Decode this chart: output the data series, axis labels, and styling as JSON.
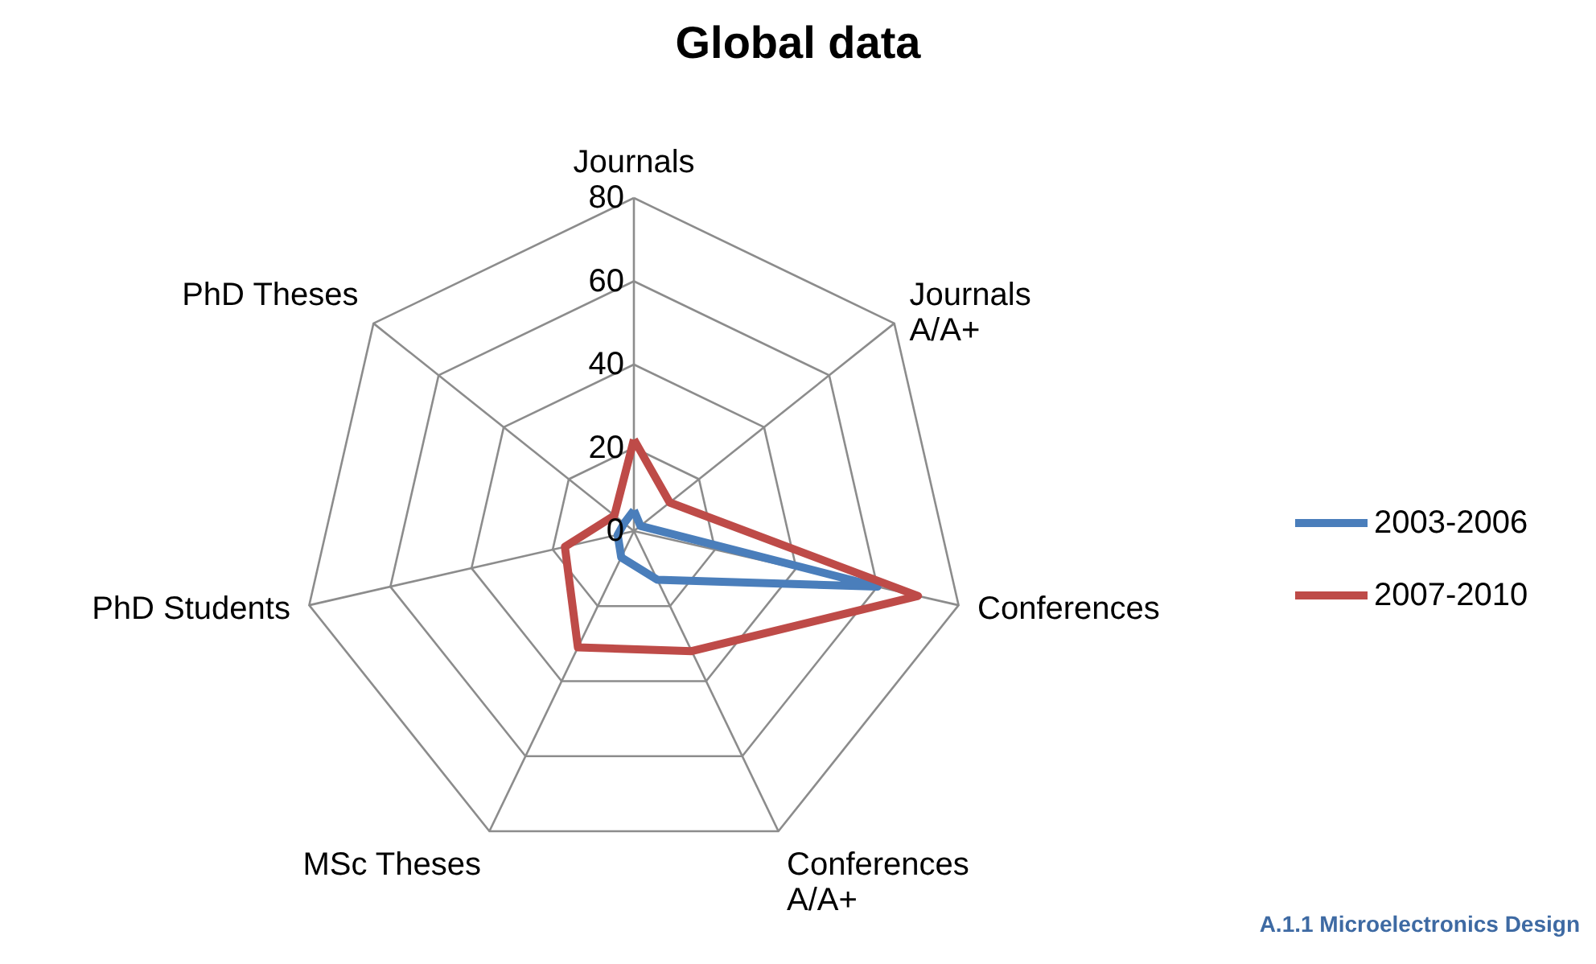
{
  "chart_data": {
    "type": "radar",
    "title": "Global data",
    "categories": [
      "Journals",
      "Journals\nA/A+",
      "Conferences",
      "Conferences\nA/A+",
      "MSc Theses",
      "PhD Students",
      "PhD Theses"
    ],
    "series": [
      {
        "name": "2003-2006",
        "color": "#4a7ebb",
        "values": [
          5,
          2,
          60,
          13,
          7,
          4,
          3
        ]
      },
      {
        "name": "2007-2010",
        "color": "#be4b48",
        "values": [
          22,
          11,
          70,
          32,
          31,
          17,
          6
        ]
      }
    ],
    "ylim": [
      0,
      80
    ],
    "yticks": [
      0,
      20,
      40,
      60,
      80
    ],
    "legend": "right",
    "grid": true,
    "annotations": [
      "A.1.1 Microelectronics Design"
    ]
  }
}
